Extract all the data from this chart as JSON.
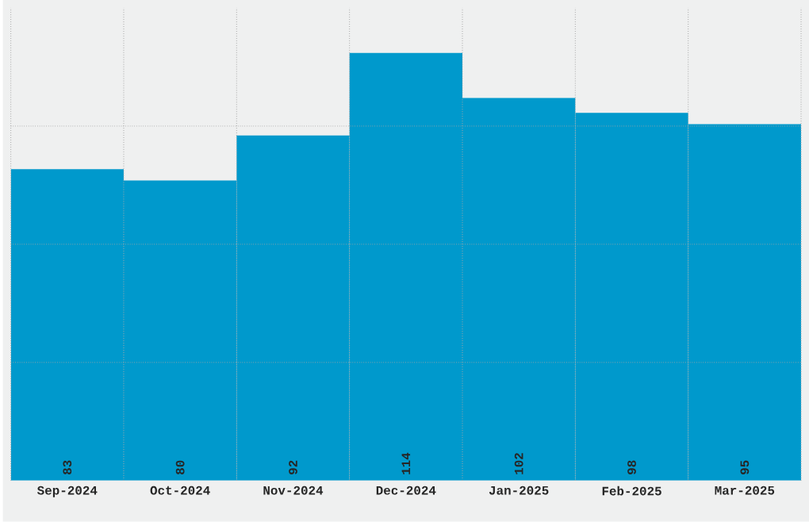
{
  "chart_data": {
    "type": "bar",
    "categories": [
      "Sep-2024",
      "Oct-2024",
      "Nov-2024",
      "Dec-2024",
      "Jan-2025",
      "Feb-2025",
      "Mar-2025"
    ],
    "values": [
      83,
      80,
      92,
      114,
      102,
      98,
      95
    ],
    "color": "#0099cc",
    "ylim": [
      0,
      126
    ],
    "yticks": [
      {
        "value": 31.5,
        "label": null
      },
      {
        "value": 63,
        "label": null
      },
      {
        "value": 94.5,
        "label": null
      }
    ],
    "tick_labels": "x",
    "data_labels": true,
    "grid": true
  }
}
